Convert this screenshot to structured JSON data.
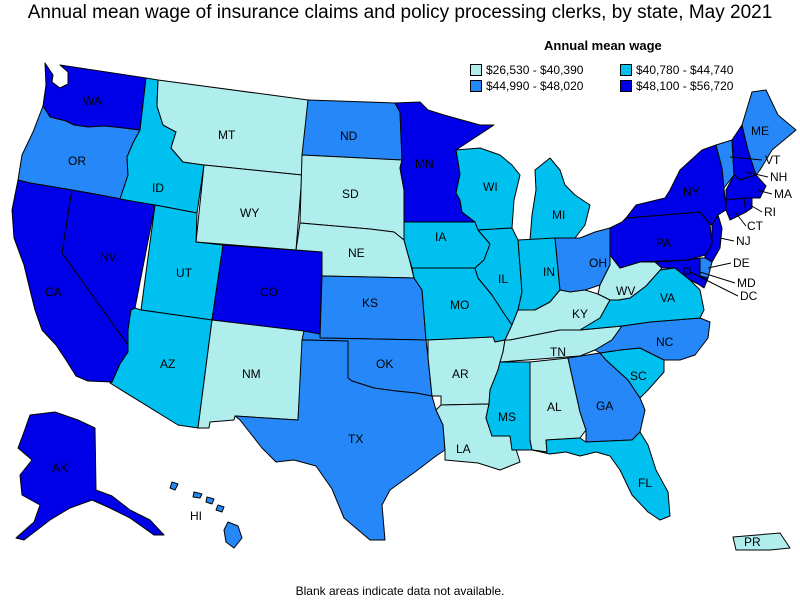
{
  "title": "Annual mean wage of insurance claims and policy processing clerks, by state, May 2021",
  "legend": {
    "title": "Annual mean wage",
    "bins": [
      {
        "label": "$26,530 - $40,390",
        "color": "#b0eeee"
      },
      {
        "label": "$40,780 - $44,740",
        "color": "#00c0f0"
      },
      {
        "label": "$44,990 - $48,020",
        "color": "#2688f8"
      },
      {
        "label": "$48,100 - $56,720",
        "color": "#0000e8"
      }
    ]
  },
  "states": [
    {
      "abbr": "WA",
      "bin": 3
    },
    {
      "abbr": "OR",
      "bin": 2
    },
    {
      "abbr": "CA",
      "bin": 3
    },
    {
      "abbr": "NV",
      "bin": 3
    },
    {
      "abbr": "ID",
      "bin": 1
    },
    {
      "abbr": "MT",
      "bin": 0
    },
    {
      "abbr": "WY",
      "bin": 0
    },
    {
      "abbr": "UT",
      "bin": 1
    },
    {
      "abbr": "AZ",
      "bin": 1
    },
    {
      "abbr": "CO",
      "bin": 3
    },
    {
      "abbr": "NM",
      "bin": 0
    },
    {
      "abbr": "ND",
      "bin": 2
    },
    {
      "abbr": "SD",
      "bin": 0
    },
    {
      "abbr": "NE",
      "bin": 0
    },
    {
      "abbr": "KS",
      "bin": 2
    },
    {
      "abbr": "OK",
      "bin": 2
    },
    {
      "abbr": "TX",
      "bin": 2
    },
    {
      "abbr": "MN",
      "bin": 3
    },
    {
      "abbr": "IA",
      "bin": 1
    },
    {
      "abbr": "MO",
      "bin": 1
    },
    {
      "abbr": "AR",
      "bin": 0
    },
    {
      "abbr": "LA",
      "bin": 0
    },
    {
      "abbr": "WI",
      "bin": 1
    },
    {
      "abbr": "IL",
      "bin": 1
    },
    {
      "abbr": "MI",
      "bin": 1
    },
    {
      "abbr": "IN",
      "bin": 1
    },
    {
      "abbr": "OH",
      "bin": 2
    },
    {
      "abbr": "KY",
      "bin": 0
    },
    {
      "abbr": "TN",
      "bin": 0
    },
    {
      "abbr": "MS",
      "bin": 1
    },
    {
      "abbr": "AL",
      "bin": 0
    },
    {
      "abbr": "GA",
      "bin": 2
    },
    {
      "abbr": "FL",
      "bin": 1
    },
    {
      "abbr": "SC",
      "bin": 1
    },
    {
      "abbr": "NC",
      "bin": 2
    },
    {
      "abbr": "VA",
      "bin": 1
    },
    {
      "abbr": "WV",
      "bin": 0
    },
    {
      "abbr": "PA",
      "bin": 3
    },
    {
      "abbr": "NY",
      "bin": 3
    },
    {
      "abbr": "NJ",
      "bin": 3
    },
    {
      "abbr": "DE",
      "bin": 2
    },
    {
      "abbr": "MD",
      "bin": 3
    },
    {
      "abbr": "DC",
      "bin": 3
    },
    {
      "abbr": "VT",
      "bin": 2
    },
    {
      "abbr": "NH",
      "bin": 3
    },
    {
      "abbr": "ME",
      "bin": 2
    },
    {
      "abbr": "MA",
      "bin": 3
    },
    {
      "abbr": "CT",
      "bin": 3
    },
    {
      "abbr": "RI",
      "bin": 3
    },
    {
      "abbr": "AK",
      "bin": 3
    },
    {
      "abbr": "HI",
      "bin": 2
    },
    {
      "abbr": "PR",
      "bin": 0
    }
  ],
  "footnote": "Blank areas indicate data not available."
}
